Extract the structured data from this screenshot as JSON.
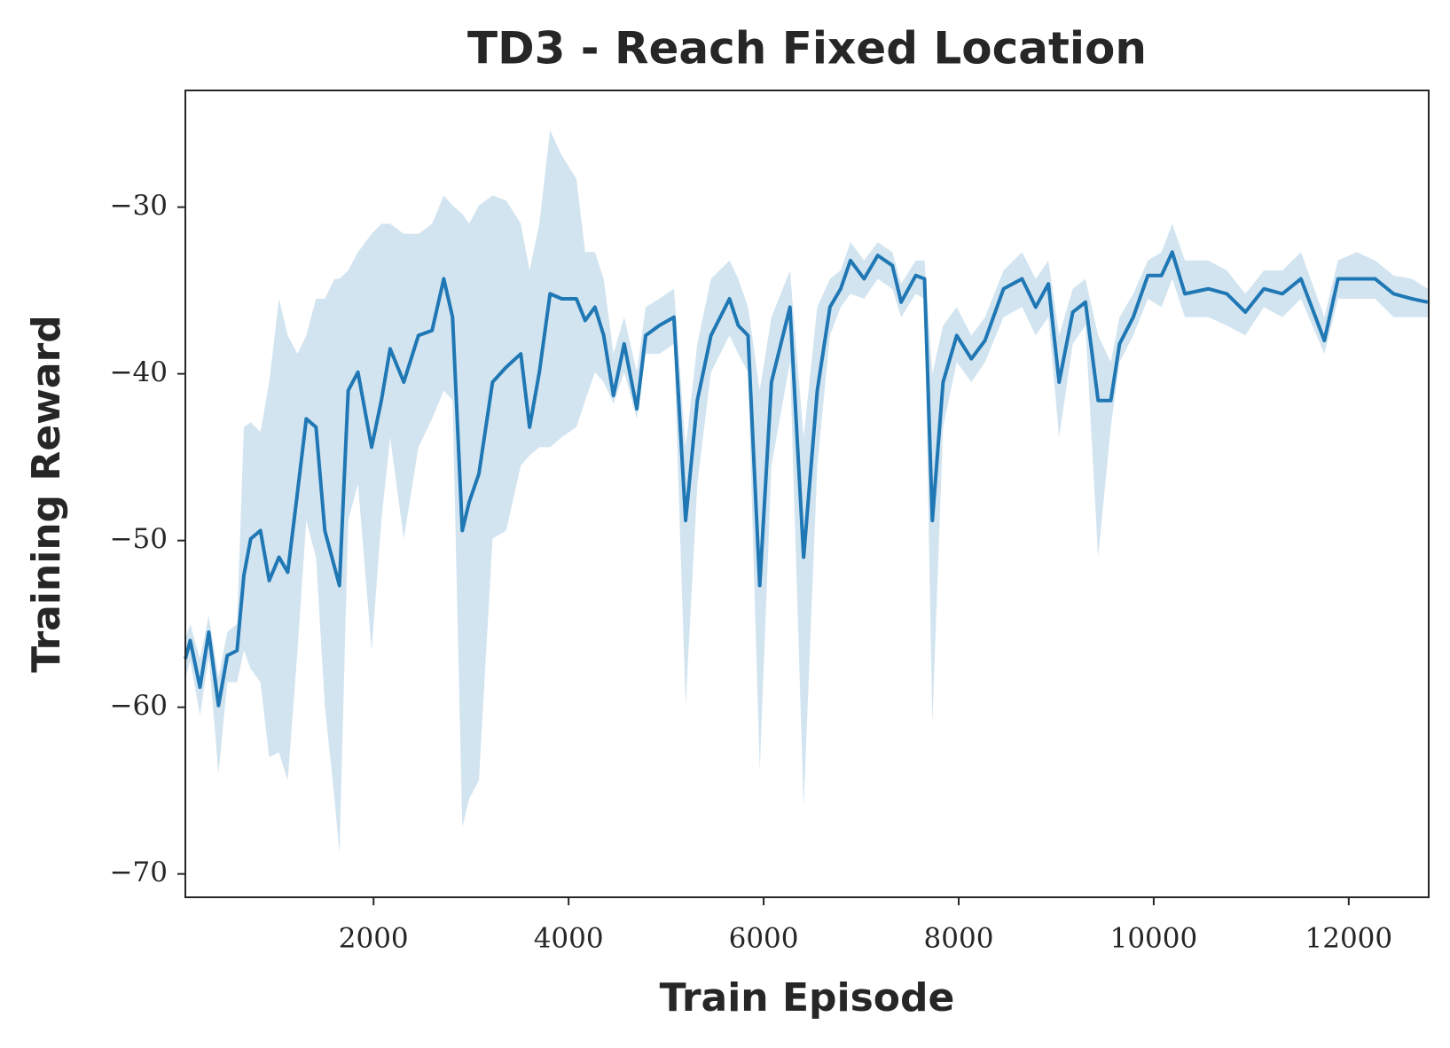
{
  "chart_data": {
    "type": "line",
    "title": "TD3 - Reach Fixed Location",
    "x_label": "Train Episode",
    "y_label": "Training Reward",
    "color": "#1f77b4",
    "x": [
      70,
      120,
      220,
      310,
      410,
      500,
      600,
      670,
      740,
      840,
      930,
      1030,
      1120,
      1220,
      1310,
      1410,
      1500,
      1600,
      1650,
      1740,
      1840,
      1980,
      2080,
      2170,
      2310,
      2460,
      2600,
      2720,
      2810,
      2910,
      2980,
      3080,
      3220,
      3360,
      3510,
      3600,
      3700,
      3810,
      3930,
      4080,
      4170,
      4270,
      4360,
      4460,
      4570,
      4700,
      4790,
      4930,
      5080,
      5200,
      5320,
      5460,
      5650,
      5740,
      5840,
      5960,
      6080,
      6270,
      6410,
      6550,
      6680,
      6790,
      6890,
      7030,
      7170,
      7320,
      7410,
      7560,
      7650,
      7730,
      7840,
      7980,
      8130,
      8270,
      8460,
      8650,
      8790,
      8920,
      9030,
      9170,
      9300,
      9430,
      9560,
      9650,
      9790,
      9940,
      10080,
      10190,
      10320,
      10560,
      10750,
      10940,
      11130,
      11320,
      11510,
      11750,
      11890,
      12080,
      12270,
      12460,
      12650,
      12810
    ],
    "values": [
      -57.1,
      -56.0,
      -58.8,
      -55.5,
      -59.9,
      -56.9,
      -56.6,
      -52.1,
      -49.9,
      -49.4,
      -52.4,
      -51.0,
      -51.9,
      -47.1,
      -42.7,
      -43.2,
      -49.4,
      -51.6,
      -52.7,
      -41.0,
      -39.9,
      -44.4,
      -41.6,
      -38.5,
      -40.5,
      -37.7,
      -37.4,
      -34.3,
      -36.6,
      -49.4,
      -47.7,
      -46.0,
      -40.5,
      -39.6,
      -38.8,
      -43.2,
      -39.9,
      -35.2,
      -35.5,
      -35.5,
      -36.8,
      -36.0,
      -37.7,
      -41.3,
      -38.2,
      -42.1,
      -37.7,
      -37.1,
      -36.6,
      -48.8,
      -41.6,
      -37.7,
      -35.5,
      -37.1,
      -37.7,
      -52.7,
      -40.5,
      -36.0,
      -51.0,
      -41.0,
      -36.0,
      -34.9,
      -33.2,
      -34.3,
      -32.9,
      -33.5,
      -35.7,
      -34.1,
      -34.3,
      -48.8,
      -40.5,
      -37.7,
      -39.1,
      -38.0,
      -34.9,
      -34.3,
      -36.0,
      -34.6,
      -40.5,
      -36.3,
      -35.7,
      -41.6,
      -41.6,
      -38.2,
      -36.6,
      -34.1,
      -34.1,
      -32.7,
      -35.2,
      -34.9,
      -35.2,
      -36.3,
      -34.9,
      -35.2,
      -34.3,
      -38.0,
      -34.3,
      -34.3,
      -34.3,
      -35.2,
      -35.5,
      -35.7
    ],
    "upper": [
      -55.9,
      -55.0,
      -57.1,
      -54.5,
      -58.2,
      -55.5,
      -55.0,
      -43.2,
      -42.9,
      -43.5,
      -40.5,
      -35.5,
      -37.7,
      -38.8,
      -37.7,
      -35.5,
      -35.5,
      -34.3,
      -34.3,
      -33.8,
      -32.7,
      -31.6,
      -31.0,
      -31.0,
      -31.6,
      -31.6,
      -31.0,
      -29.3,
      -29.9,
      -30.4,
      -31.0,
      -29.9,
      -29.3,
      -29.6,
      -31.0,
      -33.8,
      -31.0,
      -25.4,
      -26.9,
      -28.3,
      -32.7,
      -32.7,
      -34.3,
      -38.8,
      -36.6,
      -39.9,
      -36.0,
      -35.5,
      -34.9,
      -44.4,
      -38.2,
      -34.3,
      -33.2,
      -34.3,
      -36.0,
      -41.0,
      -36.6,
      -33.8,
      -43.8,
      -36.0,
      -34.3,
      -33.8,
      -32.1,
      -33.2,
      -32.1,
      -32.7,
      -34.6,
      -33.2,
      -33.2,
      -40.0,
      -37.1,
      -36.0,
      -37.7,
      -36.6,
      -33.8,
      -32.7,
      -34.3,
      -33.2,
      -37.7,
      -34.9,
      -34.3,
      -37.7,
      -39.3,
      -36.6,
      -35.2,
      -33.2,
      -32.7,
      -31.0,
      -33.2,
      -33.2,
      -33.8,
      -35.2,
      -33.8,
      -33.8,
      -32.7,
      -36.6,
      -33.2,
      -32.7,
      -33.2,
      -34.1,
      -34.3,
      -34.9
    ],
    "lower": [
      -58.3,
      -57.2,
      -60.5,
      -57.0,
      -64.0,
      -58.5,
      -58.5,
      -56.6,
      -57.7,
      -58.5,
      -63.0,
      -62.7,
      -64.4,
      -56.6,
      -48.8,
      -51.0,
      -59.9,
      -65.5,
      -68.8,
      -48.8,
      -46.6,
      -56.6,
      -48.8,
      -43.8,
      -49.9,
      -44.4,
      -42.7,
      -41.0,
      -41.6,
      -67.2,
      -65.5,
      -64.4,
      -49.9,
      -49.4,
      -45.5,
      -44.9,
      -44.4,
      -44.4,
      -43.8,
      -43.2,
      -41.6,
      -39.9,
      -40.5,
      -41.8,
      -39.9,
      -42.7,
      -38.8,
      -38.8,
      -38.2,
      -59.9,
      -46.6,
      -39.9,
      -37.7,
      -38.8,
      -39.9,
      -63.8,
      -45.5,
      -39.3,
      -66.0,
      -45.5,
      -37.7,
      -36.0,
      -35.2,
      -35.5,
      -34.3,
      -34.9,
      -36.6,
      -35.2,
      -35.5,
      -61.0,
      -43.2,
      -39.3,
      -40.5,
      -39.3,
      -36.6,
      -36.0,
      -37.7,
      -36.6,
      -43.8,
      -38.2,
      -37.1,
      -51.0,
      -43.2,
      -39.3,
      -37.7,
      -35.5,
      -36.0,
      -34.3,
      -36.6,
      -36.6,
      -37.1,
      -37.7,
      -36.0,
      -36.6,
      -35.5,
      -38.8,
      -35.5,
      -35.5,
      -35.5,
      -36.6,
      -36.6,
      -36.6
    ],
    "xlim": [
      70,
      12820
    ],
    "ylim": [
      -71.4,
      -23.0
    ],
    "xticks": [
      2000,
      4000,
      6000,
      8000,
      10000,
      12000
    ],
    "yticks": [
      {
        "value": -30,
        "label": "−30"
      },
      {
        "value": -40,
        "label": "−40"
      },
      {
        "value": -50,
        "label": "−50"
      },
      {
        "value": -60,
        "label": "−60"
      },
      {
        "value": -70,
        "label": "−70"
      }
    ]
  }
}
